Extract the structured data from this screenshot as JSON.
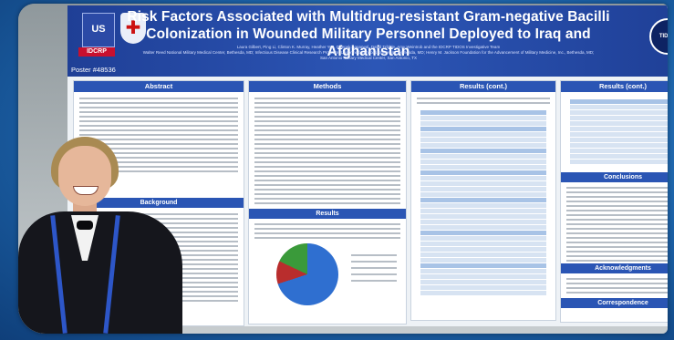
{
  "poster": {
    "title_line1": "Risk Factors Associated with Multidrug-resistant Gram-negative Bacilli",
    "title_line2": "Colonization in Wounded Military Personnel Deployed to Iraq and Afghanistan",
    "authors": "Laura Gilbert, Ping Li, Clinton K. Murray, Heather Yun, Deepak Aggarwal, David Tribble, Amy Weintrob and the IDCRP TIDOS Investigative Team",
    "affiliations": "Walter Reed National Military Medical Center, Bethesda, MD; Infectious Disease Clinical Research Program, Uniformed Services University, Bethesda, MD; Henry M. Jackson Foundation for the Advancement of Military Medicine, Inc., Bethesda, MD; San Antonio Military Medical Center, San Antonio, TX",
    "poster_number": "Poster #48536",
    "logo_left": "US",
    "logo_badge": "IDCRP",
    "logo_right": "TIDOS"
  },
  "sections": {
    "abstract": "Abstract",
    "background": "Background",
    "methods": "Methods",
    "results": "Results",
    "results_cont_1": "Results (cont.)",
    "results_cont_2": "Results (cont.)",
    "conclusions": "Conclusions",
    "acknowledgments": "Acknowledgments",
    "correspondence": "Correspondence"
  },
  "figure": {
    "pie_shares": [
      70,
      12,
      18
    ],
    "colors": [
      "#2f6fd0",
      "#b92d2d",
      "#3a9a3a"
    ]
  }
}
